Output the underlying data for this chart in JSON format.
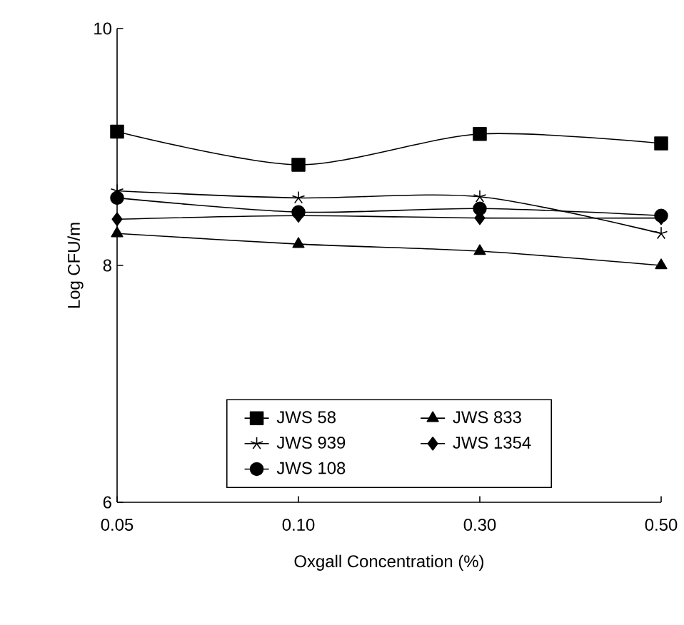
{
  "chart_data": {
    "type": "line",
    "xlabel": "Oxgall Concentration (%)",
    "ylabel": "Log CFU/m",
    "categories": [
      "0.05",
      "0.10",
      "0.30",
      "0.50"
    ],
    "ylim": [
      6,
      10
    ],
    "yticks": [
      6,
      8,
      10
    ],
    "grid": false,
    "legend": "bottom",
    "series": [
      {
        "name": "JWS 58",
        "color": "#000000",
        "marker": "square",
        "values": [
          9.13,
          8.85,
          9.11,
          9.03
        ]
      },
      {
        "name": "JWS 833",
        "color": "#000000",
        "marker": "triangle",
        "values": [
          8.27,
          8.18,
          8.12,
          8.0
        ]
      },
      {
        "name": "JWS 939",
        "color": "#000000",
        "marker": "cross",
        "values": [
          8.63,
          8.57,
          8.58,
          8.27
        ]
      },
      {
        "name": "JWS 1354",
        "color": "#000000",
        "marker": "diamond",
        "values": [
          8.39,
          8.42,
          8.4,
          8.4
        ]
      },
      {
        "name": "JWS 108",
        "color": "#000000",
        "marker": "circle",
        "values": [
          8.57,
          8.45,
          8.48,
          8.42
        ]
      }
    ]
  }
}
